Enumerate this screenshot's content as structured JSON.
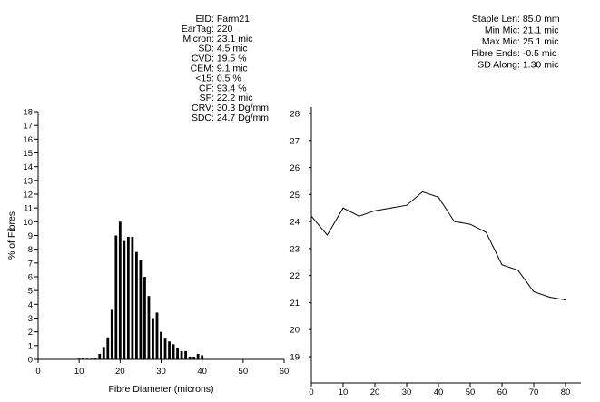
{
  "stats_left": [
    {
      "label": "EID",
      "sep": " : ",
      "value": "Farm21"
    },
    {
      "label": "EarTag",
      "sep": " : ",
      "value": "220"
    },
    {
      "label": "Micron",
      "sep": " : ",
      "value": "23.1 mic"
    },
    {
      "label": "SD",
      "sep": " : ",
      "value": "  4.5 mic"
    },
    {
      "label": "CVD",
      "sep": " : ",
      "value": "19.5 %"
    },
    {
      "label": "CEM",
      "sep": " : ",
      "value": "  9.1 mic"
    },
    {
      "label": "<15",
      "sep": " : ",
      "value": "  0.5 %"
    },
    {
      "label": "CF",
      "sep": " : ",
      "value": "93.4 %"
    },
    {
      "label": "SF",
      "sep": " : ",
      "value": "22.2 mic"
    },
    {
      "label": "CRV",
      "sep": " : ",
      "value": "30.3 Dg/mm"
    },
    {
      "label": "SDC",
      "sep": " : ",
      "value": "24.7 Dg/mm"
    }
  ],
  "stats_right": [
    {
      "label": "Staple Len",
      "sep": " :  ",
      "value": "85.0 mm"
    },
    {
      "label": "Min Mic",
      "sep": " :  ",
      "value": "21.1 mic"
    },
    {
      "label": "Max Mic",
      "sep": " :  ",
      "value": "25.1 mic"
    },
    {
      "label": "Fibre Ends",
      "sep": " :  ",
      "value": "-0.5 mic"
    },
    {
      "label": "SD Along",
      "sep": " :  ",
      "value": "1.30 mic"
    }
  ],
  "chart_data": [
    {
      "type": "bar",
      "xlabel": "Fibre Diameter (microns)",
      "ylabel": "% of Fibres",
      "xlim": [
        0,
        60
      ],
      "ylim": [
        0,
        18
      ],
      "xticks": [
        0,
        10,
        20,
        30,
        40,
        50,
        60
      ],
      "yticks": [
        0,
        1,
        2,
        3,
        4,
        5,
        6,
        7,
        8,
        9,
        10,
        11,
        12,
        13,
        14,
        15,
        16,
        17,
        18
      ],
      "x": [
        10,
        11,
        12,
        13,
        14,
        15,
        16,
        17,
        18,
        19,
        20,
        21,
        22,
        23,
        24,
        25,
        26,
        27,
        28,
        29,
        30,
        31,
        32,
        33,
        34,
        35,
        36,
        37,
        38,
        39,
        40
      ],
      "values": [
        0.05,
        0.1,
        0.05,
        0.05,
        0.1,
        0.4,
        0.9,
        1.6,
        3.6,
        9.0,
        10.0,
        8.6,
        8.9,
        8.9,
        7.8,
        7.2,
        6.0,
        4.6,
        3.0,
        3.4,
        2.0,
        1.5,
        1.3,
        1.1,
        0.8,
        0.6,
        0.6,
        0.2,
        0.2,
        0.4,
        0.3
      ]
    },
    {
      "type": "line",
      "xlim": [
        0,
        80
      ],
      "ylim": [
        19,
        28
      ],
      "xticks": [
        0,
        10,
        20,
        30,
        40,
        50,
        60,
        70,
        80
      ],
      "yticks": [
        19,
        20,
        21,
        22,
        23,
        24,
        25,
        26,
        27,
        28
      ],
      "x": [
        0,
        5,
        10,
        15,
        20,
        25,
        30,
        35,
        40,
        45,
        50,
        55,
        60,
        65,
        70,
        75,
        80
      ],
      "y": [
        24.2,
        23.5,
        24.5,
        24.2,
        24.4,
        24.5,
        24.6,
        25.1,
        24.9,
        24.0,
        23.9,
        23.6,
        22.4,
        22.2,
        21.4,
        21.2,
        21.1
      ]
    }
  ]
}
